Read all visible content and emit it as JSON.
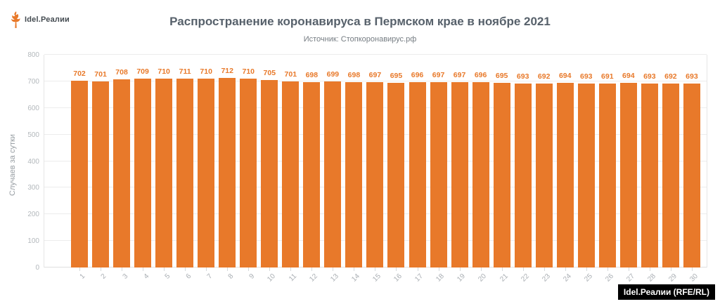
{
  "logo": {
    "text": "Idel.Реалии",
    "icon": "torch-icon",
    "accent_color": "#E8792A"
  },
  "chart_data": {
    "type": "bar",
    "title": "Распространение коронавируса в Пермском крае в ноябре 2021",
    "source": "Источник: Стопкоронавирус.рф",
    "xlabel": "",
    "ylabel": "Случаев за сутки",
    "categories": [
      "1",
      "2",
      "3",
      "4",
      "5",
      "6",
      "7",
      "8",
      "9",
      "10",
      "11",
      "12",
      "13",
      "14",
      "15",
      "16",
      "17",
      "18",
      "19",
      "20",
      "21",
      "22",
      "23",
      "24",
      "25",
      "26",
      "27",
      "28",
      "29",
      "30"
    ],
    "values": [
      702,
      701,
      708,
      709,
      710,
      711,
      710,
      712,
      710,
      705,
      701,
      698,
      699,
      698,
      697,
      695,
      696,
      697,
      697,
      696,
      695,
      693,
      692,
      694,
      693,
      691,
      694,
      693,
      692,
      693
    ],
    "ylim": [
      0,
      800
    ],
    "yticks": [
      0,
      100,
      200,
      300,
      400,
      500,
      600,
      700,
      800
    ],
    "grid": true,
    "legend": false,
    "bar_color": "#E8792A",
    "value_label_color": "#E8792A"
  },
  "footer": {
    "attribution": "Idel.Реалии (RFE/RL)"
  }
}
